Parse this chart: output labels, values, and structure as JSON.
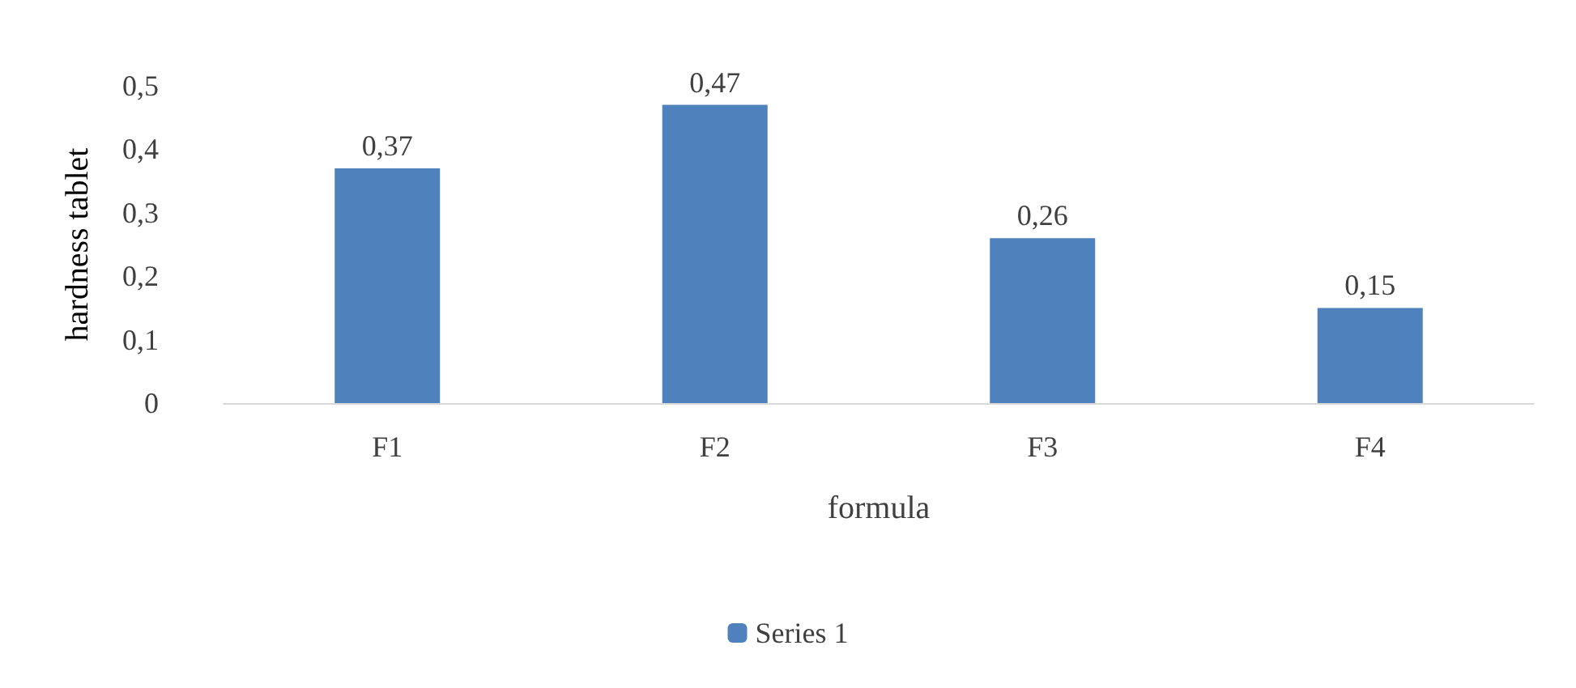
{
  "chart_data": {
    "type": "bar",
    "xlabel": "formula",
    "ylabel": "hardness tablet",
    "categories": [
      "F1",
      "F2",
      "F3",
      "F4"
    ],
    "series": [
      {
        "name": "Series 1",
        "color": "#4f81bd",
        "values": [
          0.37,
          0.47,
          0.26,
          0.15
        ],
        "value_labels": [
          "0,37",
          "0,47",
          "0,26",
          "0,15"
        ]
      }
    ],
    "ylim": [
      0,
      0.5
    ],
    "yticks": [
      0,
      {
        "value": 0.1,
        "label": "0,1"
      },
      {
        "value": 0.2,
        "label": "0,2"
      },
      {
        "value": 0.3,
        "label": "0,3"
      },
      {
        "value": 0.4,
        "label": "0,4"
      },
      {
        "value": 0.5,
        "label": "0,5"
      }
    ],
    "grid": false,
    "legend": "bottom"
  }
}
